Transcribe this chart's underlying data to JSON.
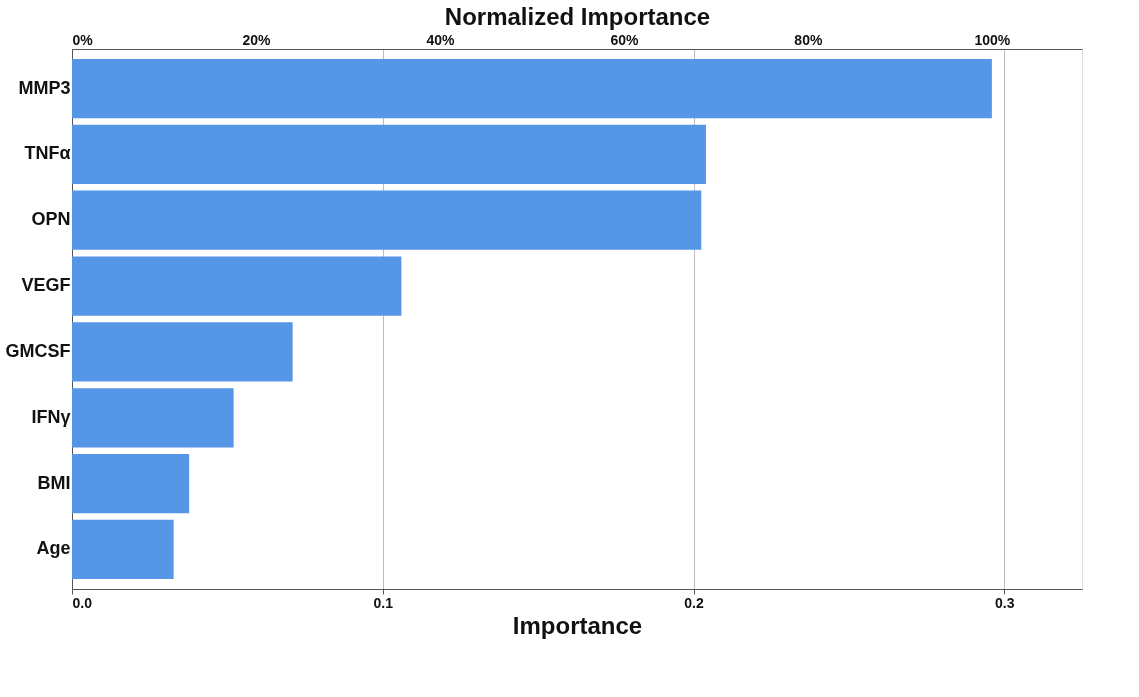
{
  "chart_data": {
    "type": "bar",
    "orientation": "horizontal",
    "categories": [
      "MMP3",
      "TNFα",
      "OPN",
      "VEGF",
      "GMCSF",
      "IFNγ",
      "BMI",
      "Age"
    ],
    "values": [
      0.296,
      0.204,
      0.2025,
      0.106,
      0.071,
      0.052,
      0.0377,
      0.0327
    ],
    "color": "#5596e6",
    "xlabel": "Importance",
    "xlim": [
      0,
      0.325
    ],
    "xticks": [
      {
        "value": 0,
        "label": "0.0"
      },
      0.1,
      0.2,
      0.3
    ],
    "x2label": "Normalized Importance",
    "x2lim": [
      0,
      109.8
    ],
    "x2ticks": [
      {
        "value": 0,
        "label": "0%"
      },
      {
        "value": 20,
        "label": "20%"
      },
      {
        "value": 40,
        "label": "40%"
      },
      {
        "value": 60,
        "label": "60%"
      },
      {
        "value": 80,
        "label": "80%"
      },
      {
        "value": 100,
        "label": "100%"
      }
    ],
    "grid": "x"
  }
}
